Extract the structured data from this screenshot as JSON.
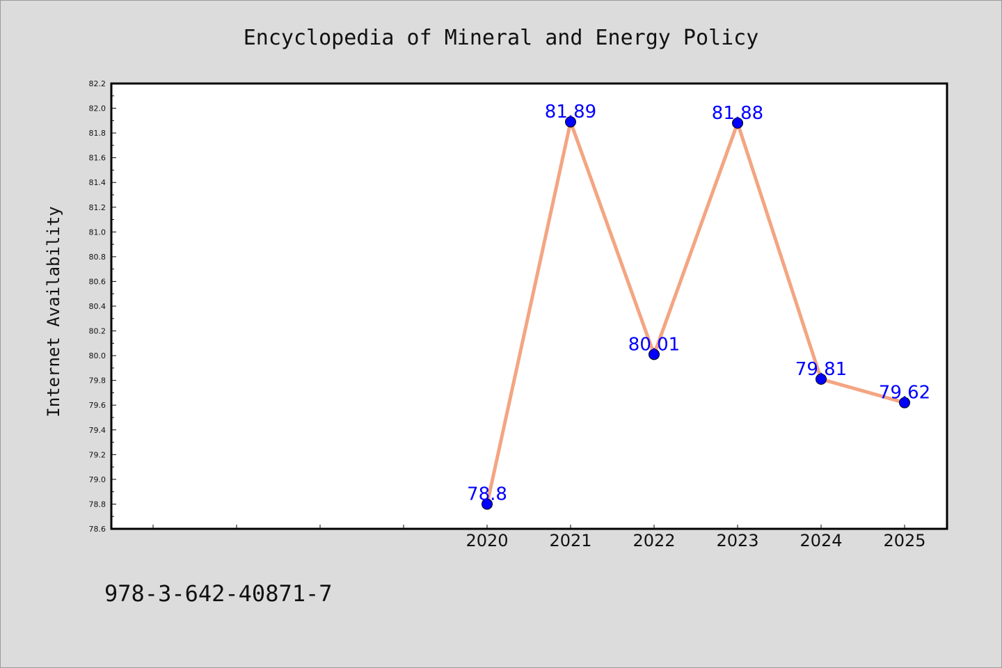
{
  "chart_data": {
    "type": "line",
    "title": "Encyclopedia of Mineral and Energy Policy",
    "xlabel": "",
    "ylabel": "Internet Availability",
    "categories": [
      "2020",
      "2021",
      "2022",
      "2023",
      "2024",
      "2025"
    ],
    "values": [
      78.8,
      81.89,
      80.01,
      81.88,
      79.81,
      79.62
    ],
    "data_labels": [
      "78.8",
      "81.89",
      "80.01",
      "81.88",
      "79.81",
      "79.62"
    ],
    "ylim": [
      78.6,
      82.2
    ],
    "yticks": [
      "78.6",
      "78.8",
      "79.0",
      "79.2",
      "79.4",
      "79.6",
      "79.8",
      "80.0",
      "80.2",
      "80.4",
      "80.6",
      "80.8",
      "81.0",
      "81.2",
      "81.4",
      "81.6",
      "81.8",
      "82.0",
      "82.2"
    ],
    "grid": false,
    "legend": "none",
    "colors": {
      "line": "#f4a582",
      "marker": "#0000ff",
      "label": "#0000ff",
      "background": "#dcdcdc",
      "plot_area": "#ffffff"
    }
  },
  "footer": {
    "isbn": "978-3-642-40871-7"
  }
}
